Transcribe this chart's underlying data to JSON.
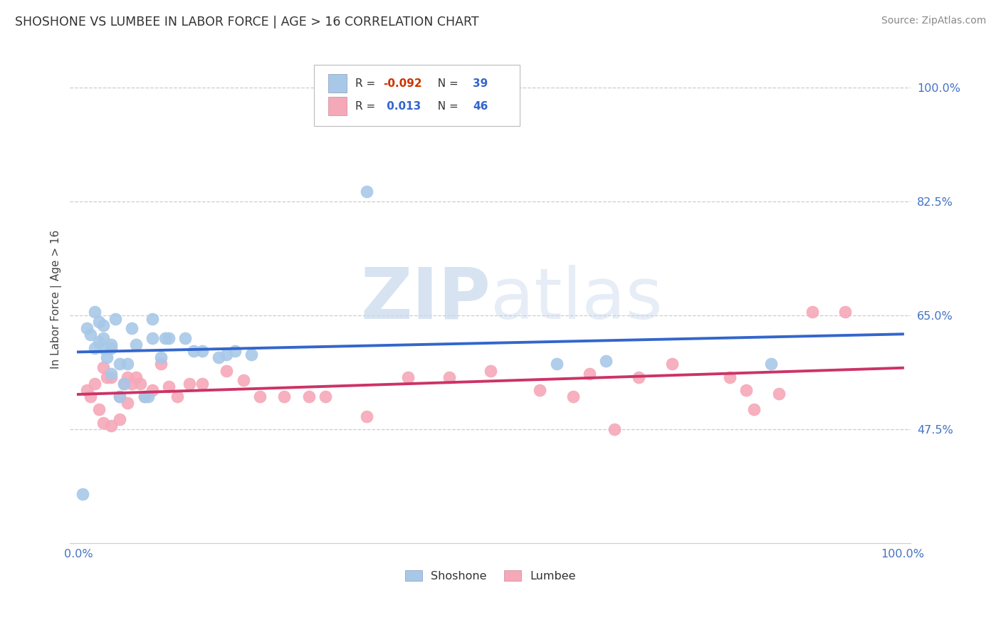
{
  "title": "SHOSHONE VS LUMBEE IN LABOR FORCE | AGE > 16 CORRELATION CHART",
  "ylabel": "In Labor Force | Age > 16",
  "source": "Source: ZipAtlas.com",
  "watermark_zip": "ZIP",
  "watermark_atlas": "atlas",
  "xlim": [
    0,
    1
  ],
  "ylim": [
    0.3,
    1.05
  ],
  "shoshone_color": "#a8c8e8",
  "lumbee_color": "#f5a8b8",
  "shoshone_line_color": "#3366cc",
  "lumbee_line_color": "#cc3366",
  "legend_r_shoshone": "-0.092",
  "legend_n_shoshone": "39",
  "legend_r_lumbee": "0.013",
  "legend_n_lumbee": "46",
  "shoshone_x": [
    0.005,
    0.01,
    0.015,
    0.02,
    0.02,
    0.025,
    0.025,
    0.03,
    0.03,
    0.03,
    0.035,
    0.04,
    0.04,
    0.04,
    0.045,
    0.05,
    0.05,
    0.055,
    0.06,
    0.065,
    0.07,
    0.08,
    0.085,
    0.09,
    0.09,
    0.1,
    0.105,
    0.11,
    0.13,
    0.14,
    0.15,
    0.17,
    0.18,
    0.19,
    0.21,
    0.35,
    0.58,
    0.64,
    0.84
  ],
  "shoshone_y": [
    0.375,
    0.63,
    0.62,
    0.655,
    0.6,
    0.64,
    0.61,
    0.6,
    0.615,
    0.635,
    0.585,
    0.56,
    0.605,
    0.6,
    0.645,
    0.575,
    0.525,
    0.545,
    0.575,
    0.63,
    0.605,
    0.525,
    0.525,
    0.615,
    0.645,
    0.585,
    0.615,
    0.615,
    0.615,
    0.595,
    0.595,
    0.585,
    0.59,
    0.595,
    0.59,
    0.84,
    0.575,
    0.58,
    0.575
  ],
  "lumbee_x": [
    0.01,
    0.015,
    0.02,
    0.025,
    0.03,
    0.03,
    0.035,
    0.04,
    0.04,
    0.05,
    0.05,
    0.055,
    0.06,
    0.06,
    0.065,
    0.07,
    0.075,
    0.08,
    0.09,
    0.1,
    0.11,
    0.12,
    0.135,
    0.15,
    0.18,
    0.2,
    0.22,
    0.25,
    0.28,
    0.3,
    0.35,
    0.4,
    0.45,
    0.5,
    0.56,
    0.6,
    0.62,
    0.65,
    0.68,
    0.72,
    0.79,
    0.81,
    0.82,
    0.85,
    0.89,
    0.93
  ],
  "lumbee_y": [
    0.535,
    0.525,
    0.545,
    0.505,
    0.57,
    0.485,
    0.555,
    0.48,
    0.555,
    0.49,
    0.525,
    0.545,
    0.555,
    0.515,
    0.545,
    0.555,
    0.545,
    0.525,
    0.535,
    0.575,
    0.54,
    0.525,
    0.545,
    0.545,
    0.565,
    0.55,
    0.525,
    0.525,
    0.525,
    0.525,
    0.495,
    0.555,
    0.555,
    0.565,
    0.535,
    0.525,
    0.56,
    0.475,
    0.555,
    0.575,
    0.555,
    0.535,
    0.505,
    0.53,
    0.655,
    0.655
  ],
  "ytick_positions": [
    0.475,
    0.65,
    0.825,
    1.0
  ],
  "ytick_labels": [
    "47.5%",
    "65.0%",
    "82.5%",
    "100.0%"
  ],
  "xtick_positions": [
    0.0,
    1.0
  ],
  "xtick_labels": [
    "0.0%",
    "100.0%"
  ],
  "background_color": "#ffffff",
  "grid_color": "#cccccc",
  "tick_color": "#4472c4"
}
